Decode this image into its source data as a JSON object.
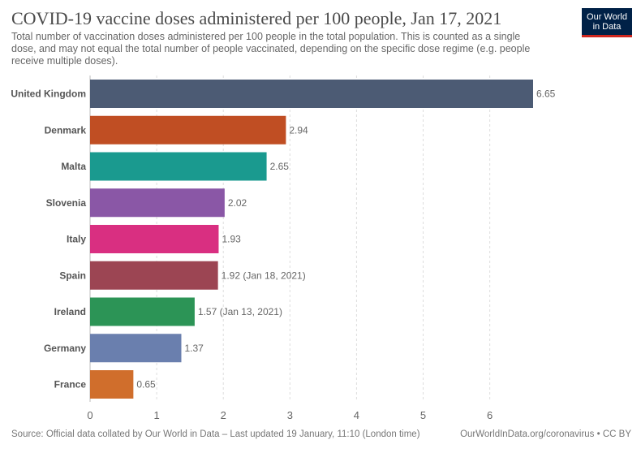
{
  "header": {
    "title": "COVID-19 vaccine doses administered per 100 people, Jan 17, 2021",
    "subtitle": "Total number of vaccination doses administered per 100 people in the total population. This is counted as a single dose, and may not equal the total number of people vaccinated, depending on the specific dose regime (e.g. people receive multiple doses)."
  },
  "logo": {
    "line1": "Our World",
    "line2": "in Data",
    "accent": "#ce261e",
    "background": "#002147"
  },
  "footer": {
    "source": "Source: Official data collated by Our World in Data – Last updated 19 January, 11:10 (London time)",
    "url": "OurWorldInData.org/coronavirus • CC BY"
  },
  "chart_data": {
    "type": "bar",
    "orientation": "horizontal",
    "title": "COVID-19 vaccine doses administered per 100 people, Jan 17, 2021",
    "xlim": [
      0,
      6.65
    ],
    "xticks": [
      0,
      1,
      2,
      3,
      4,
      5,
      6
    ],
    "grid": true,
    "categories": [
      "United Kingdom",
      "Denmark",
      "Malta",
      "Slovenia",
      "Italy",
      "Spain",
      "Ireland",
      "Germany",
      "France"
    ],
    "values": [
      6.65,
      2.94,
      2.65,
      2.02,
      1.93,
      1.92,
      1.57,
      1.37,
      0.65
    ],
    "value_labels": [
      "6.65",
      "2.94",
      "2.65",
      "2.02",
      "1.93",
      "1.92 (Jan 18, 2021)",
      "1.57 (Jan 13, 2021)",
      "1.37",
      "0.65"
    ],
    "colors": [
      "#4c5b74",
      "#c04e23",
      "#1a9a8f",
      "#8a57a6",
      "#d92f81",
      "#9c4553",
      "#2c9456",
      "#6a7fae",
      "#d06e2c"
    ]
  }
}
